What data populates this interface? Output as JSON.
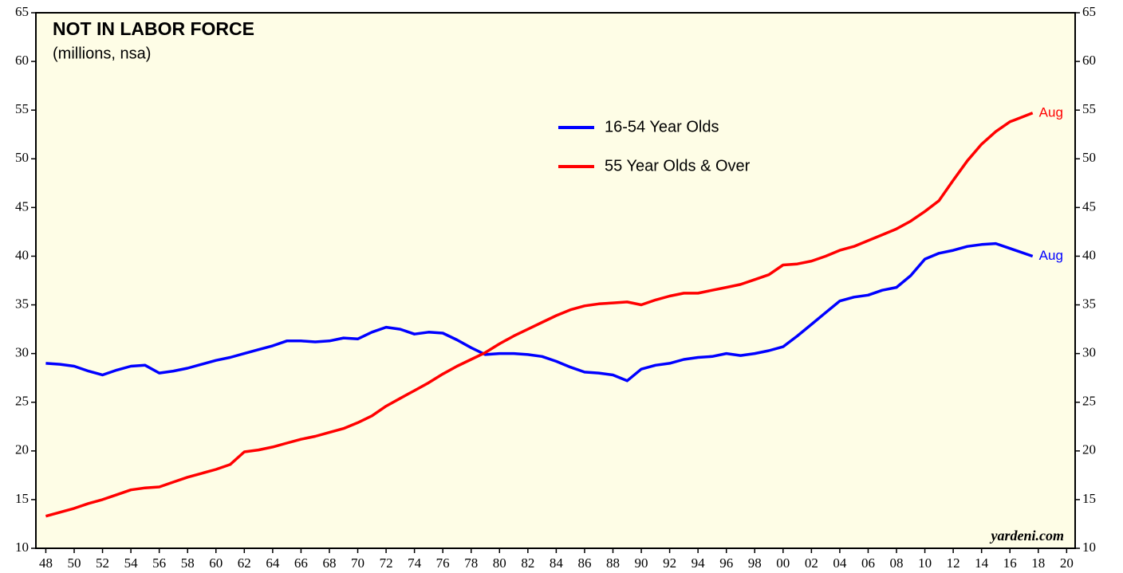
{
  "chart_data": {
    "type": "line",
    "title": "NOT IN LABOR FORCE",
    "subtitle": "(millions, nsa)",
    "source": "yardeni.com",
    "legend": "upper center",
    "grid": false,
    "background": "#fefde6",
    "x": [
      1948,
      1949,
      1950,
      1951,
      1952,
      1953,
      1954,
      1955,
      1956,
      1957,
      1958,
      1959,
      1960,
      1961,
      1962,
      1963,
      1964,
      1965,
      1966,
      1967,
      1968,
      1969,
      1970,
      1971,
      1972,
      1973,
      1974,
      1975,
      1976,
      1977,
      1978,
      1979,
      1980,
      1981,
      1982,
      1983,
      1984,
      1985,
      1986,
      1987,
      1988,
      1989,
      1990,
      1991,
      1992,
      1993,
      1994,
      1995,
      1996,
      1997,
      1998,
      1999,
      2000,
      2001,
      2002,
      2003,
      2004,
      2005,
      2006,
      2007,
      2008,
      2009,
      2010,
      2011,
      2012,
      2013,
      2014,
      2015,
      2016,
      2017.6
    ],
    "series": [
      {
        "name": "16-54 Year Olds",
        "color": "#0000ff",
        "end_label": "Aug",
        "values": [
          29,
          28.9,
          28.7,
          28.2,
          27.8,
          28.3,
          28.7,
          28.8,
          28,
          28.2,
          28.5,
          28.9,
          29.3,
          29.6,
          30,
          30.4,
          30.8,
          31.3,
          31.3,
          31.2,
          31.3,
          31.6,
          31.5,
          32.2,
          32.7,
          32.5,
          32,
          32.2,
          32.1,
          31.4,
          30.6,
          29.9,
          30,
          30,
          29.9,
          29.7,
          29.2,
          28.6,
          28.1,
          28,
          27.8,
          27.2,
          28.4,
          28.8,
          29,
          29.4,
          29.6,
          29.7,
          30,
          29.8,
          30,
          30.3,
          30.7,
          31.8,
          33,
          34.2,
          35.4,
          35.8,
          36,
          36.5,
          36.8,
          38,
          39.7,
          40.3,
          40.6,
          41,
          41.2,
          41.3,
          40.8,
          40
        ]
      },
      {
        "name": "55 Year Olds & Over",
        "color": "#ff0000",
        "end_label": "Aug",
        "values": [
          13.3,
          13.7,
          14.1,
          14.6,
          15,
          15.5,
          16,
          16.2,
          16.3,
          16.8,
          17.3,
          17.7,
          18.1,
          18.6,
          19.9,
          20.1,
          20.4,
          20.8,
          21.2,
          21.5,
          21.9,
          22.3,
          22.9,
          23.6,
          24.6,
          25.4,
          26.2,
          27,
          27.9,
          28.7,
          29.4,
          30.1,
          31,
          31.8,
          32.5,
          33.2,
          33.9,
          34.5,
          34.9,
          35.1,
          35.2,
          35.3,
          35,
          35.5,
          35.9,
          36.2,
          36.2,
          36.5,
          36.8,
          37.1,
          37.6,
          38.1,
          39.1,
          39.2,
          39.5,
          40,
          40.6,
          41,
          41.6,
          42.2,
          42.8,
          43.6,
          44.6,
          45.7,
          47.8,
          49.8,
          51.5,
          52.8,
          53.8,
          54.7
        ]
      }
    ],
    "xlim": [
      1947.3,
      2020.6
    ],
    "xticks": [
      {
        "value": 1948,
        "label": "48"
      },
      {
        "value": 1950,
        "label": "50"
      },
      {
        "value": 1952,
        "label": "52"
      },
      {
        "value": 1954,
        "label": "54"
      },
      {
        "value": 1956,
        "label": "56"
      },
      {
        "value": 1958,
        "label": "58"
      },
      {
        "value": 1960,
        "label": "60"
      },
      {
        "value": 1962,
        "label": "62"
      },
      {
        "value": 1964,
        "label": "64"
      },
      {
        "value": 1966,
        "label": "66"
      },
      {
        "value": 1968,
        "label": "68"
      },
      {
        "value": 1970,
        "label": "70"
      },
      {
        "value": 1972,
        "label": "72"
      },
      {
        "value": 1974,
        "label": "74"
      },
      {
        "value": 1976,
        "label": "76"
      },
      {
        "value": 1978,
        "label": "78"
      },
      {
        "value": 1980,
        "label": "80"
      },
      {
        "value": 1982,
        "label": "82"
      },
      {
        "value": 1984,
        "label": "84"
      },
      {
        "value": 1986,
        "label": "86"
      },
      {
        "value": 1988,
        "label": "88"
      },
      {
        "value": 1990,
        "label": "90"
      },
      {
        "value": 1992,
        "label": "92"
      },
      {
        "value": 1994,
        "label": "94"
      },
      {
        "value": 1996,
        "label": "96"
      },
      {
        "value": 1998,
        "label": "98"
      },
      {
        "value": 2000,
        "label": "00"
      },
      {
        "value": 2002,
        "label": "02"
      },
      {
        "value": 2004,
        "label": "04"
      },
      {
        "value": 2006,
        "label": "06"
      },
      {
        "value": 2008,
        "label": "08"
      },
      {
        "value": 2010,
        "label": "10"
      },
      {
        "value": 2012,
        "label": "12"
      },
      {
        "value": 2014,
        "label": "14"
      },
      {
        "value": 2016,
        "label": "16"
      },
      {
        "value": 2018,
        "label": "18"
      },
      {
        "value": 2020,
        "label": "20"
      }
    ],
    "ylim": [
      10,
      65
    ],
    "yticks": [
      10,
      15,
      20,
      25,
      30,
      35,
      40,
      45,
      50,
      55,
      60,
      65
    ]
  }
}
